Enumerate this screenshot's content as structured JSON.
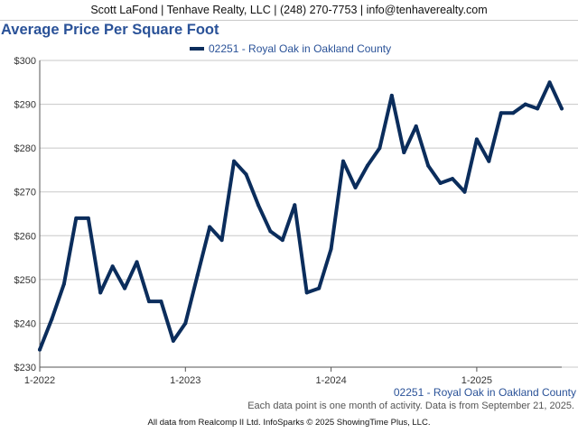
{
  "header": {
    "contact": "Scott LaFond | Tenhave Realty, LLC | (248) 270-7753 | info@tenhaverealty.com"
  },
  "footer": {
    "note": "Each data point is one month of activity. Data is from September 21, 2025.",
    "credit": "All data from Realcomp II Ltd. InfoSparks © 2025 ShowingTime Plus, LLC."
  },
  "colors": {
    "title": "#2a5298",
    "series": "#0b2d5c",
    "axis_label": "#2a5298",
    "grid": "#c8c8c8"
  },
  "chart_data": {
    "type": "line",
    "title": "Average Price Per Square Foot",
    "xlabel": "02251 - Royal Oak in Oakland County",
    "ylabel": "",
    "x_ticks": [
      "1-2022",
      "1-2023",
      "1-2024",
      "1-2025"
    ],
    "y_ticks": [
      "$230",
      "$240",
      "$250",
      "$260",
      "$270",
      "$280",
      "$290",
      "$300"
    ],
    "ylim": [
      230,
      300
    ],
    "grid": true,
    "legend": "top-center",
    "series": [
      {
        "name": "02251 - Royal Oak in Oakland County",
        "x": [
          "2022-01",
          "2022-02",
          "2022-03",
          "2022-04",
          "2022-05",
          "2022-06",
          "2022-07",
          "2022-08",
          "2022-09",
          "2022-10",
          "2022-11",
          "2022-12",
          "2023-01",
          "2023-02",
          "2023-03",
          "2023-04",
          "2023-05",
          "2023-06",
          "2023-07",
          "2023-08",
          "2023-09",
          "2023-10",
          "2023-11",
          "2023-12",
          "2024-01",
          "2024-02",
          "2024-03",
          "2024-04",
          "2024-05",
          "2024-06",
          "2024-07",
          "2024-08",
          "2024-09",
          "2024-10",
          "2024-11",
          "2024-12",
          "2025-01",
          "2025-02",
          "2025-03",
          "2025-04",
          "2025-05",
          "2025-06",
          "2025-07",
          "2025-08"
        ],
        "values": [
          234,
          241,
          249,
          264,
          264,
          247,
          253,
          248,
          254,
          245,
          245,
          236,
          240,
          251,
          262,
          259,
          277,
          274,
          267,
          261,
          259,
          267,
          247,
          248,
          257,
          277,
          271,
          276,
          280,
          292,
          279,
          285,
          276,
          272,
          273,
          270,
          282,
          277,
          288,
          288,
          290,
          289,
          295,
          289
        ]
      }
    ]
  }
}
